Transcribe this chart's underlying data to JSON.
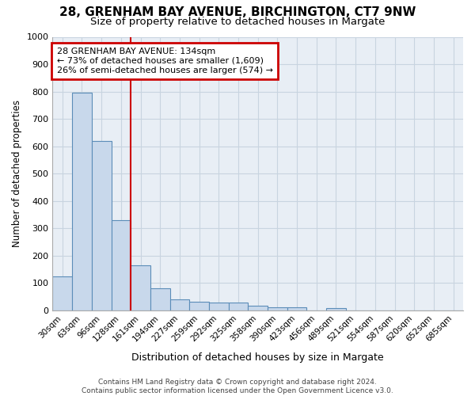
{
  "title1": "28, GRENHAM BAY AVENUE, BIRCHINGTON, CT7 9NW",
  "title2": "Size of property relative to detached houses in Margate",
  "xlabel": "Distribution of detached houses by size in Margate",
  "ylabel": "Number of detached properties",
  "categories": [
    "30sqm",
    "63sqm",
    "96sqm",
    "128sqm",
    "161sqm",
    "194sqm",
    "227sqm",
    "259sqm",
    "292sqm",
    "325sqm",
    "358sqm",
    "390sqm",
    "423sqm",
    "456sqm",
    "489sqm",
    "521sqm",
    "554sqm",
    "587sqm",
    "620sqm",
    "652sqm",
    "685sqm"
  ],
  "values": [
    125,
    795,
    620,
    330,
    163,
    80,
    40,
    30,
    27,
    27,
    15,
    12,
    10,
    0,
    8,
    0,
    0,
    0,
    0,
    0,
    0
  ],
  "bar_color": "#c8d8eb",
  "bar_edge_color": "#5b8db8",
  "vline_x": 3,
  "vline_color": "#cc0000",
  "annotation_text": "28 GRENHAM BAY AVENUE: 134sqm\n← 73% of detached houses are smaller (1,609)\n26% of semi-detached houses are larger (574) →",
  "annotation_box_color": "#ffffff",
  "annotation_box_edge_color": "#cc0000",
  "ylim": [
    0,
    1000
  ],
  "yticks": [
    0,
    100,
    200,
    300,
    400,
    500,
    600,
    700,
    800,
    900,
    1000
  ],
  "plot_bg_color": "#e8eef5",
  "fig_bg_color": "#ffffff",
  "grid_color": "#c8d4e0",
  "footer": "Contains HM Land Registry data © Crown copyright and database right 2024.\nContains public sector information licensed under the Open Government Licence v3.0."
}
